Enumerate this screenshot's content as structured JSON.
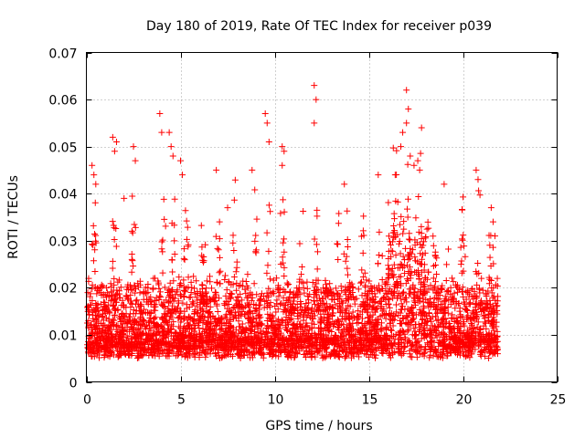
{
  "chart_data": {
    "type": "scatter",
    "title": "Day 180 of 2019, Rate Of TEC Index for receiver p039",
    "xlabel": "GPS time / hours",
    "ylabel": "ROTI / TECUs",
    "xlim": [
      0,
      25
    ],
    "ylim": [
      0,
      0.07
    ],
    "xticks": [
      0,
      5,
      10,
      15,
      20,
      25
    ],
    "xtick_labels": [
      "0",
      "5",
      "10",
      "15",
      "20",
      "25"
    ],
    "yticks": [
      0,
      0.01,
      0.02,
      0.03,
      0.04,
      0.05,
      0.06,
      0.07
    ],
    "ytick_labels": [
      "0",
      "0.01",
      "0.02",
      "0.03",
      "0.04",
      "0.05",
      "0.06",
      "0.07"
    ],
    "grid": true,
    "marker": "+",
    "color": "#ff0000",
    "series": [
      {
        "name": "ROTI",
        "description_of_density": "dense cloud of points from 0 to ~21.9 h, mostly 0.004–0.02 TECU, sparse peaks up to ~0.063",
        "points": [
          [
            0.3,
            0.046
          ],
          [
            0.4,
            0.044
          ],
          [
            0.5,
            0.042
          ],
          [
            1.4,
            0.052
          ],
          [
            1.5,
            0.049
          ],
          [
            1.6,
            0.051
          ],
          [
            2.0,
            0.039
          ],
          [
            2.5,
            0.05
          ],
          [
            2.6,
            0.047
          ],
          [
            3.9,
            0.057
          ],
          [
            4.0,
            0.053
          ],
          [
            4.4,
            0.053
          ],
          [
            4.5,
            0.05
          ],
          [
            4.6,
            0.048
          ],
          [
            5.0,
            0.047
          ],
          [
            5.1,
            0.044
          ],
          [
            6.9,
            0.045
          ],
          [
            7.5,
            0.037
          ],
          [
            8.8,
            0.045
          ],
          [
            9.5,
            0.057
          ],
          [
            9.6,
            0.055
          ],
          [
            9.7,
            0.051
          ],
          [
            10.4,
            0.05
          ],
          [
            10.5,
            0.049
          ],
          [
            10.4,
            0.046
          ],
          [
            12.1,
            0.063
          ],
          [
            12.2,
            0.06
          ],
          [
            12.1,
            0.055
          ],
          [
            13.7,
            0.042
          ],
          [
            15.5,
            0.044
          ],
          [
            16.7,
            0.05
          ],
          [
            16.8,
            0.053
          ],
          [
            17.0,
            0.062
          ],
          [
            17.1,
            0.058
          ],
          [
            17.0,
            0.055
          ],
          [
            17.2,
            0.048
          ],
          [
            17.4,
            0.046
          ],
          [
            17.6,
            0.047
          ],
          [
            17.7,
            0.045
          ],
          [
            17.8,
            0.054
          ],
          [
            16.4,
            0.044
          ],
          [
            19.0,
            0.042
          ],
          [
            20.7,
            0.045
          ],
          [
            20.8,
            0.043
          ],
          [
            21.5,
            0.037
          ],
          [
            21.6,
            0.034
          ],
          [
            21.7,
            0.031
          ]
        ]
      }
    ]
  }
}
